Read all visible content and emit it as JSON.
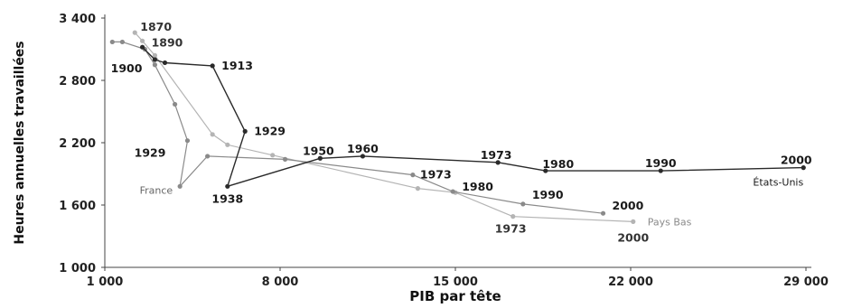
{
  "chart_data": {
    "type": "line",
    "xlabel": "PIB par tête",
    "ylabel": "Heures annuelles travaillées",
    "xlim": [
      1000,
      29000
    ],
    "ylim": [
      1000,
      3400
    ],
    "x_ticks": [
      1000,
      8000,
      15000,
      22000,
      29000
    ],
    "x_tick_labels": [
      "1 000",
      "8 000",
      "15 000",
      "22 000",
      "29 000"
    ],
    "y_ticks": [
      1000,
      1600,
      2200,
      2800,
      3400
    ],
    "y_tick_labels": [
      "1 000",
      "1 600",
      "2 200",
      "2 800",
      "3 400"
    ],
    "grid": false,
    "series": [
      {
        "name": "États-Unis",
        "color": "#2a2a2a",
        "width": 1.4,
        "points": [
          {
            "x": 2500,
            "y": 3120,
            "label": ""
          },
          {
            "x": 3000,
            "y": 3000,
            "label": "1900"
          },
          {
            "x": 3400,
            "y": 2970,
            "label": ""
          },
          {
            "x": 5300,
            "y": 2940,
            "label": "1913"
          },
          {
            "x": 6600,
            "y": 2310,
            "label": "1929"
          },
          {
            "x": 5900,
            "y": 1780,
            "label": "1938"
          },
          {
            "x": 9600,
            "y": 2050,
            "label": "1950"
          },
          {
            "x": 11300,
            "y": 2070,
            "label": "1960"
          },
          {
            "x": 16700,
            "y": 2010,
            "label": "1973"
          },
          {
            "x": 18600,
            "y": 1930,
            "label": "1980"
          },
          {
            "x": 23200,
            "y": 1930,
            "label": "1990"
          },
          {
            "x": 28900,
            "y": 1960,
            "label": "2000"
          }
        ]
      },
      {
        "name": "France",
        "color": "#8a8a8a",
        "width": 1.2,
        "points": [
          {
            "x": 1300,
            "y": 3170,
            "label": ""
          },
          {
            "x": 1700,
            "y": 3170,
            "label": ""
          },
          {
            "x": 2600,
            "y": 3100,
            "label": ""
          },
          {
            "x": 3000,
            "y": 2950,
            "label": ""
          },
          {
            "x": 3800,
            "y": 2570,
            "label": ""
          },
          {
            "x": 4300,
            "y": 2220,
            "label": "1929"
          },
          {
            "x": 4000,
            "y": 1780,
            "label": ""
          },
          {
            "x": 5100,
            "y": 2070,
            "label": ""
          },
          {
            "x": 8200,
            "y": 2040,
            "label": ""
          },
          {
            "x": 13300,
            "y": 1890,
            "label": "1973"
          },
          {
            "x": 14900,
            "y": 1730,
            "label": "1980"
          },
          {
            "x": 17700,
            "y": 1610,
            "label": "1990"
          },
          {
            "x": 20900,
            "y": 1520,
            "label": "2000"
          }
        ]
      },
      {
        "name": "Pays Bas",
        "color": "#b4b4b4",
        "width": 1.2,
        "points": [
          {
            "x": 2200,
            "y": 3260,
            "label": "1870"
          },
          {
            "x": 2500,
            "y": 3180,
            "label": "1890"
          },
          {
            "x": 3000,
            "y": 3040,
            "label": ""
          },
          {
            "x": 5300,
            "y": 2280,
            "label": ""
          },
          {
            "x": 5900,
            "y": 2180,
            "label": ""
          },
          {
            "x": 7700,
            "y": 2080,
            "label": ""
          },
          {
            "x": 13500,
            "y": 1760,
            "label": ""
          },
          {
            "x": 15000,
            "y": 1720,
            "label": ""
          },
          {
            "x": 17300,
            "y": 1490,
            "label": "1973"
          },
          {
            "x": 22100,
            "y": 1440,
            "label": "2000"
          }
        ]
      }
    ]
  },
  "year_labels": [
    {
      "series": 2,
      "point": 0,
      "text": "1870",
      "dx": 6,
      "dy": -6,
      "anchor": "start"
    },
    {
      "series": 2,
      "point": 1,
      "text": "1890",
      "dx": 10,
      "dy": 2,
      "anchor": "start"
    },
    {
      "series": 0,
      "point": 1,
      "text": "1900",
      "dx": -14,
      "dy": 10,
      "anchor": "end"
    },
    {
      "series": 0,
      "point": 3,
      "text": "1913",
      "dx": 10,
      "dy": 0,
      "anchor": "start"
    },
    {
      "series": 0,
      "point": 4,
      "text": "1929",
      "dx": 10,
      "dy": 0,
      "anchor": "start"
    },
    {
      "series": 1,
      "point": 5,
      "text": "1929",
      "dx": -24,
      "dy": 14,
      "anchor": "end"
    },
    {
      "series": 0,
      "point": 5,
      "text": "1938",
      "dx": 0,
      "dy": 14,
      "anchor": "middle"
    },
    {
      "series": 0,
      "point": 6,
      "text": "1950",
      "dx": -2,
      "dy": -8,
      "anchor": "middle"
    },
    {
      "series": 0,
      "point": 7,
      "text": "1960",
      "dx": 0,
      "dy": -8,
      "anchor": "middle"
    },
    {
      "series": 0,
      "point": 8,
      "text": "1973",
      "dx": -2,
      "dy": -8,
      "anchor": "middle"
    },
    {
      "series": 0,
      "point": 9,
      "text": "1980",
      "dx": 14,
      "dy": -7,
      "anchor": "middle"
    },
    {
      "series": 0,
      "point": 10,
      "text": "1990",
      "dx": 0,
      "dy": -8,
      "anchor": "middle"
    },
    {
      "series": 0,
      "point": 11,
      "text": "2000",
      "dx": -8,
      "dy": -8,
      "anchor": "middle"
    },
    {
      "series": 1,
      "point": 9,
      "text": "1973",
      "dx": 8,
      "dy": 0,
      "anchor": "start"
    },
    {
      "series": 1,
      "point": 10,
      "text": "1980",
      "dx": 10,
      "dy": -5,
      "anchor": "start"
    },
    {
      "series": 1,
      "point": 11,
      "text": "1990",
      "dx": 10,
      "dy": -10,
      "anchor": "start"
    },
    {
      "series": 1,
      "point": 12,
      "text": "2000",
      "dx": 10,
      "dy": -8,
      "anchor": "start"
    },
    {
      "series": 2,
      "point": 8,
      "text": "1973",
      "dx": -20,
      "dy": 14,
      "anchor": "start"
    },
    {
      "series": 2,
      "point": 9,
      "text": "2000",
      "dx": 0,
      "dy": 18,
      "anchor": "middle"
    }
  ],
  "series_labels": [
    {
      "series": 1,
      "text": "France",
      "dx": -8,
      "dy": 4,
      "anchor": "end",
      "color": "#666666"
    },
    {
      "series": 0,
      "text": "États-Unis",
      "dx": 0,
      "dy": 16,
      "anchor": "end",
      "color": "#1a1a1a"
    },
    {
      "series": 2,
      "text": "Pays Bas",
      "dx": 16,
      "dy": 0,
      "anchor": "start",
      "color": "#8a8a8a"
    }
  ]
}
